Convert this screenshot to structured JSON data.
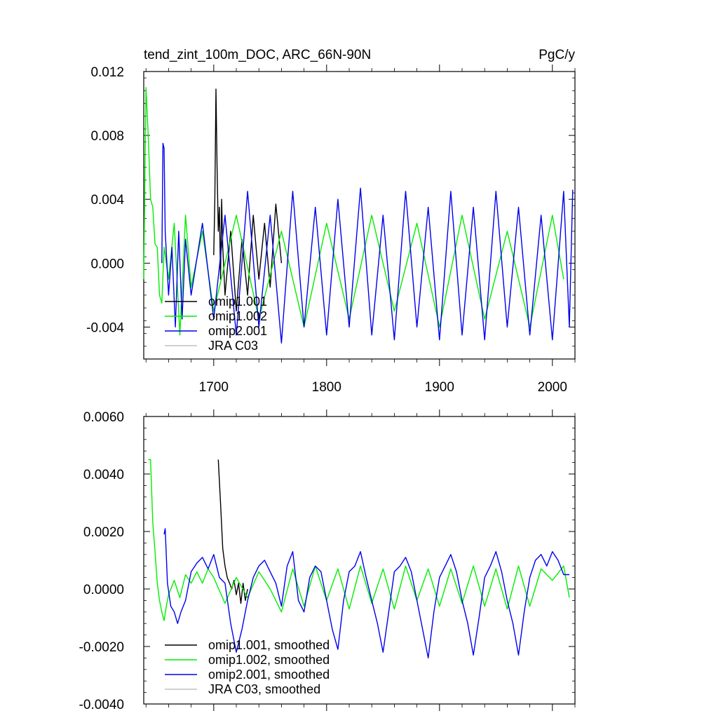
{
  "colors": {
    "omip1_001": "#000000",
    "omip1_002": "#00ee00",
    "omip2_001": "#0000ee",
    "jra_c03": "#c0c0c0",
    "axis": "#000000"
  },
  "chart_data": [
    {
      "type": "line",
      "title": "tend_zint_100m_DOC, ARC_66N-90N",
      "units": "PgC/y",
      "xlim": [
        1638,
        2020
      ],
      "ylim": [
        -0.006,
        0.012
      ],
      "x_ticks": [
        1700,
        1800,
        1900,
        2000
      ],
      "x_tick_labels": [
        "1700",
        "1800",
        "1900",
        "2000"
      ],
      "y_ticks": [
        -0.004,
        0.0,
        0.004,
        0.008,
        0.012
      ],
      "y_tick_labels": [
        "-0.004",
        "0.000",
        "0.004",
        "0.008",
        "0.012"
      ],
      "legend": {
        "position": "lower-left",
        "entries": [
          "omip1.001",
          "omip1.002",
          "omip2.001",
          "JRA C03"
        ]
      },
      "series": [
        {
          "name": "omip1.001",
          "x": [
            1700,
            1701,
            1702,
            1703,
            1704,
            1705,
            1706,
            1707,
            1708,
            1710,
            1715,
            1720,
            1725,
            1730,
            1735,
            1740,
            1745,
            1750,
            1755,
            1760
          ],
          "y": [
            0.0005,
            0.004,
            0.0109,
            0.006,
            0.002,
            0.0035,
            -0.001,
            0.004,
            0.001,
            -0.002,
            0.002,
            -0.003,
            0.0015,
            -0.002,
            0.003,
            -0.001,
            0.0025,
            -0.0015,
            0.0037,
            0.0
          ]
        },
        {
          "name": "omip1.002",
          "x": [
            1638,
            1640,
            1642,
            1644,
            1646,
            1648,
            1650,
            1652,
            1654,
            1656,
            1660,
            1665,
            1670,
            1675,
            1680,
            1690,
            1700,
            1720,
            1740,
            1760,
            1780,
            1800,
            1820,
            1840,
            1860,
            1880,
            1900,
            1920,
            1940,
            1960,
            1980,
            2000,
            2010
          ],
          "y": [
            -0.001,
            0.011,
            0.008,
            0.004,
            0.0035,
            0.0012,
            0.001,
            -0.002,
            -0.0025,
            0.001,
            -0.001,
            0.0025,
            -0.0045,
            0.003,
            -0.0015,
            0.002,
            -0.003,
            0.003,
            -0.0035,
            0.002,
            -0.004,
            0.0025,
            -0.0035,
            0.003,
            -0.003,
            0.0025,
            -0.004,
            0.003,
            -0.0035,
            0.002,
            -0.004,
            0.003,
            -0.001
          ]
        },
        {
          "name": "omip2.001",
          "x": [
            1654,
            1655,
            1656,
            1657,
            1660,
            1663,
            1666,
            1669,
            1672,
            1675,
            1680,
            1690,
            1700,
            1710,
            1720,
            1730,
            1740,
            1750,
            1760,
            1770,
            1780,
            1790,
            1800,
            1810,
            1820,
            1830,
            1840,
            1850,
            1860,
            1870,
            1880,
            1890,
            1900,
            1910,
            1920,
            1930,
            1940,
            1950,
            1960,
            1970,
            1980,
            1990,
            2000,
            2010,
            2015,
            2018
          ],
          "y": [
            0.0,
            0.0075,
            0.0072,
            0.002,
            -0.002,
            0.001,
            -0.004,
            0.002,
            -0.0035,
            0.0015,
            -0.002,
            0.0025,
            -0.0035,
            0.003,
            -0.0045,
            0.0045,
            -0.004,
            0.003,
            -0.005,
            0.0045,
            -0.004,
            0.0035,
            -0.0045,
            0.004,
            -0.004,
            0.0047,
            -0.0045,
            0.003,
            -0.0048,
            0.0045,
            -0.004,
            0.0035,
            -0.0048,
            0.0045,
            -0.0045,
            0.0035,
            -0.0048,
            0.0045,
            -0.004,
            0.0035,
            -0.0045,
            0.003,
            -0.0048,
            0.0045,
            -0.004,
            0.0046
          ]
        },
        {
          "name": "JRA C03",
          "x": [],
          "y": []
        }
      ]
    },
    {
      "type": "line",
      "title": "",
      "units": "",
      "xlim": [
        1638,
        2020
      ],
      "ylim": [
        -0.004,
        0.006
      ],
      "x_ticks": [
        1700,
        1800,
        1900,
        2000
      ],
      "x_tick_labels": [],
      "y_ticks": [
        -0.004,
        -0.002,
        0.0,
        0.002,
        0.004,
        0.006
      ],
      "y_tick_labels": [
        "-0.0040",
        "-0.0020",
        "0.0000",
        "0.0020",
        "0.0040",
        "0.0060"
      ],
      "legend": {
        "position": "lower-left",
        "entries": [
          "omip1.001, smoothed",
          "omip1.002, smoothed",
          "omip2.001, smoothed",
          "JRA C03, smoothed"
        ]
      },
      "series": [
        {
          "name": "omip1.001, smoothed",
          "x": [
            1704,
            1706,
            1708,
            1710,
            1712,
            1714,
            1716,
            1718,
            1720,
            1722,
            1724,
            1726,
            1728,
            1730
          ],
          "y": [
            0.0045,
            0.003,
            0.0014,
            0.0008,
            0.0004,
            0.0002,
            0.0,
            0.0003,
            -0.0002,
            0.0002,
            -0.0005,
            0.0002,
            -0.0004,
            0.0
          ]
        },
        {
          "name": "omip1.002, smoothed",
          "x": [
            1642,
            1644,
            1646,
            1648,
            1650,
            1652,
            1654,
            1656,
            1658,
            1660,
            1665,
            1670,
            1675,
            1680,
            1685,
            1690,
            1695,
            1700,
            1710,
            1720,
            1730,
            1740,
            1750,
            1760,
            1770,
            1780,
            1790,
            1800,
            1810,
            1820,
            1830,
            1840,
            1850,
            1860,
            1870,
            1880,
            1890,
            1900,
            1910,
            1920,
            1930,
            1940,
            1950,
            1960,
            1970,
            1980,
            1990,
            2000,
            2010,
            2015
          ],
          "y": [
            0.0045,
            0.0045,
            0.0023,
            0.0013,
            0.0002,
            -0.0004,
            -0.0008,
            -0.0011,
            -0.0006,
            -0.0002,
            0.0003,
            -0.0003,
            0.0005,
            0.0002,
            0.0006,
            0.0002,
            0.0007,
            0.0004,
            -0.0005,
            0.0004,
            -0.0003,
            0.0006,
            0.0,
            -0.0008,
            0.0007,
            -0.0006,
            0.0008,
            -0.0004,
            0.0007,
            -0.0007,
            0.0008,
            -0.0005,
            0.0007,
            -0.0007,
            0.0008,
            -0.0004,
            0.0007,
            -0.0006,
            0.0007,
            -0.0005,
            0.0008,
            -0.0006,
            0.0007,
            -0.0007,
            0.0008,
            -0.0006,
            0.0007,
            0.0003,
            0.0008,
            -0.0003
          ]
        },
        {
          "name": "omip2.001, smoothed",
          "x": [
            1656,
            1657,
            1659,
            1662,
            1665,
            1668,
            1671,
            1675,
            1680,
            1685,
            1690,
            1695,
            1700,
            1705,
            1710,
            1715,
            1720,
            1725,
            1730,
            1735,
            1740,
            1745,
            1750,
            1755,
            1760,
            1765,
            1770,
            1775,
            1780,
            1785,
            1790,
            1795,
            1800,
            1805,
            1810,
            1815,
            1820,
            1825,
            1830,
            1835,
            1840,
            1845,
            1850,
            1855,
            1860,
            1865,
            1870,
            1875,
            1880,
            1885,
            1890,
            1895,
            1900,
            1905,
            1910,
            1915,
            1920,
            1925,
            1930,
            1935,
            1940,
            1945,
            1950,
            1955,
            1960,
            1965,
            1970,
            1975,
            1980,
            1985,
            1990,
            1995,
            2000,
            2005,
            2010,
            2015
          ],
          "y": [
            0.0019,
            0.0021,
            0.0002,
            -0.0006,
            -0.0008,
            -0.0012,
            -0.0008,
            -0.0004,
            0.0006,
            0.0009,
            0.0011,
            0.0007,
            0.0012,
            0.0004,
            0.0002,
            -0.0012,
            -0.0022,
            -0.0014,
            -0.0004,
            0.0004,
            0.0008,
            0.001,
            0.0006,
            0.0002,
            -0.0006,
            0.0008,
            0.0013,
            -0.0004,
            -0.0008,
            0.0004,
            0.0008,
            0.0006,
            -0.0004,
            -0.0014,
            -0.0021,
            -0.0004,
            0.0006,
            0.0008,
            0.0013,
            0.0004,
            -0.0004,
            -0.0012,
            -0.0022,
            -0.0008,
            0.0006,
            0.0008,
            0.0011,
            0.0006,
            -0.0004,
            -0.0014,
            -0.0024,
            -0.0008,
            0.0004,
            0.0008,
            0.0012,
            0.0006,
            -0.0004,
            -0.0012,
            -0.0023,
            -0.001,
            0.0004,
            0.0008,
            0.0013,
            0.0006,
            -0.0004,
            -0.0012,
            -0.0023,
            -0.0008,
            0.0004,
            0.001,
            0.0012,
            0.0008,
            0.0013,
            0.001,
            0.0005,
            0.0005
          ]
        },
        {
          "name": "JRA C03, smoothed",
          "x": [],
          "y": []
        }
      ]
    }
  ]
}
